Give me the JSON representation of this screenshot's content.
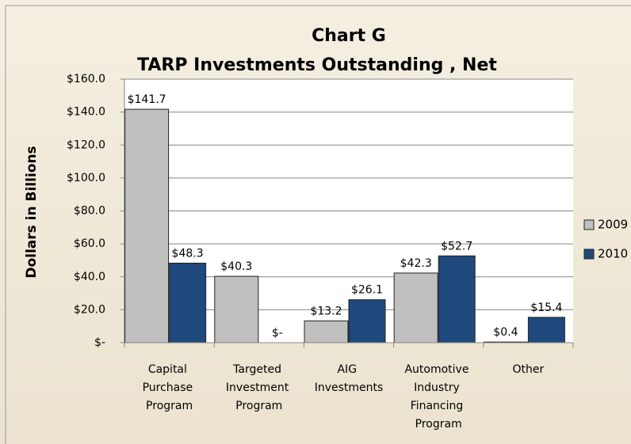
{
  "chart_data": {
    "type": "bar",
    "title": "Chart G",
    "subtitle": "TARP Investments Outstanding , Net",
    "y_label": "Dollars in Billions",
    "categories": [
      "Capital Purchase Program",
      "Targeted Investment Program",
      "AIG Investments",
      "Automotive Industry Financing Program",
      "Other"
    ],
    "series": [
      {
        "name": "2009",
        "color": "#c0c0c0",
        "values": [
          141.7,
          40.3,
          13.2,
          42.3,
          0.4
        ],
        "value_labels": [
          "$141.7",
          "$40.3",
          "$13.2",
          "$42.3",
          "$0.4"
        ]
      },
      {
        "name": "2010",
        "color": "#1f497d",
        "values": [
          48.3,
          0,
          26.1,
          52.7,
          15.4
        ],
        "value_labels": [
          "$48.3",
          "$-",
          "$26.1",
          "$52.7",
          "$15.4"
        ]
      }
    ],
    "ylim": [
      0,
      160
    ],
    "yticks": [
      {
        "value": 0,
        "label": "$-"
      },
      {
        "value": 20,
        "label": "$20.0"
      },
      {
        "value": 40,
        "label": "$40.0"
      },
      {
        "value": 60,
        "label": "$60.0"
      },
      {
        "value": 80,
        "label": "$80.0"
      },
      {
        "value": 100,
        "label": "$100.0"
      },
      {
        "value": 120,
        "label": "$120.0"
      },
      {
        "value": 140,
        "label": "$140.0"
      },
      {
        "value": 160,
        "label": "$160.0"
      }
    ],
    "grid": true,
    "legend": "right"
  }
}
